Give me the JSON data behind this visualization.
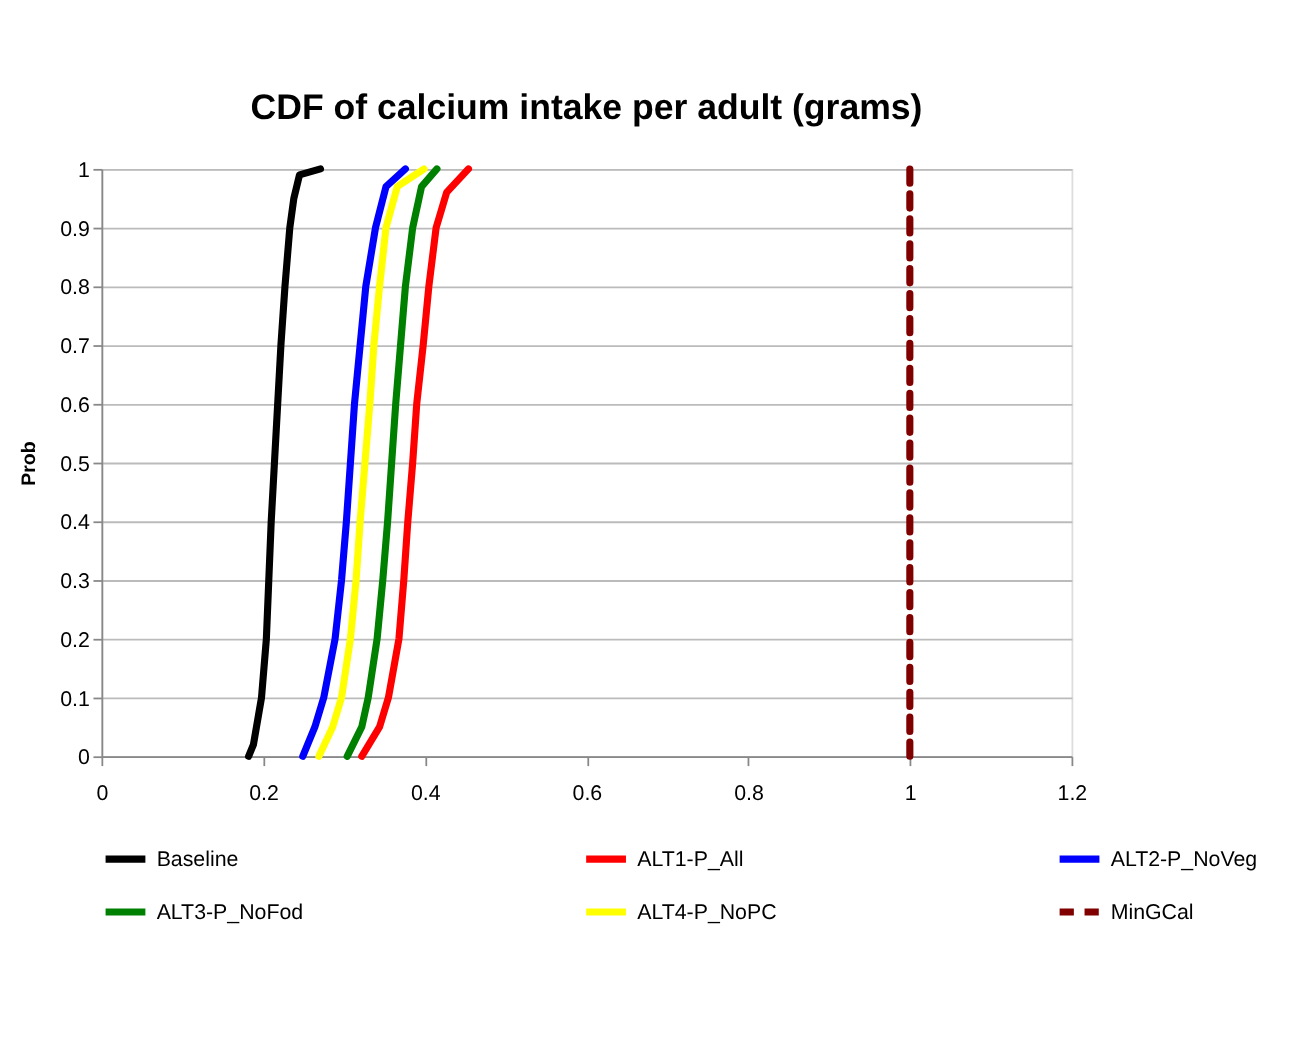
{
  "chart_data": {
    "type": "line",
    "title": "CDF of calcium intake per adult (grams)",
    "ylabel": "Prob",
    "xlim": [
      0,
      1.2
    ],
    "xticks": [
      0,
      0.2,
      0.4,
      0.6,
      0.8,
      1,
      1.2
    ],
    "ylim": [
      0,
      1
    ],
    "yticks": [
      0,
      0.1,
      0.2,
      0.3,
      0.4,
      0.5,
      0.6,
      0.7,
      0.8,
      0.9,
      1
    ],
    "grid": "y",
    "legend": "bottom",
    "marker": "none",
    "line_style": "solid",
    "series": [
      {
        "name": "Baseline",
        "color": "#000000",
        "x": [
          0.182,
          0.188,
          0.198,
          0.204,
          0.207,
          0.21,
          0.214,
          0.218,
          0.222,
          0.227,
          0.233,
          0.238,
          0.245,
          0.271
        ],
        "values": [
          0,
          0.02,
          0.1,
          0.2,
          0.3,
          0.4,
          0.5,
          0.6,
          0.7,
          0.8,
          0.9,
          0.95,
          0.99,
          1
        ]
      },
      {
        "name": "ALT1-P_All",
        "color": "#ff0000",
        "x": [
          0.322,
          0.344,
          0.355,
          0.368,
          0.374,
          0.379,
          0.385,
          0.39,
          0.398,
          0.405,
          0.414,
          0.427,
          0.454
        ],
        "values": [
          0,
          0.05,
          0.1,
          0.2,
          0.3,
          0.4,
          0.5,
          0.6,
          0.7,
          0.8,
          0.9,
          0.96,
          1
        ]
      },
      {
        "name": "ALT2-P_NoVeg",
        "color": "#0000ff",
        "x": [
          0.249,
          0.264,
          0.275,
          0.289,
          0.297,
          0.303,
          0.308,
          0.313,
          0.32,
          0.327,
          0.339,
          0.352,
          0.376
        ],
        "values": [
          0,
          0.05,
          0.1,
          0.2,
          0.3,
          0.4,
          0.5,
          0.6,
          0.7,
          0.8,
          0.9,
          0.97,
          1
        ]
      },
      {
        "name": "ALT3-P_NoFod",
        "color": "#008000",
        "x": [
          0.304,
          0.322,
          0.33,
          0.341,
          0.348,
          0.354,
          0.359,
          0.364,
          0.37,
          0.376,
          0.385,
          0.396,
          0.415
        ],
        "values": [
          0,
          0.05,
          0.1,
          0.2,
          0.3,
          0.4,
          0.5,
          0.6,
          0.7,
          0.8,
          0.9,
          0.97,
          1
        ]
      },
      {
        "name": "ALT4-P_NoPC",
        "color": "#ffff00",
        "x": [
          0.269,
          0.286,
          0.297,
          0.308,
          0.315,
          0.32,
          0.326,
          0.332,
          0.337,
          0.344,
          0.352,
          0.366,
          0.399
        ],
        "values": [
          0,
          0.05,
          0.1,
          0.2,
          0.3,
          0.4,
          0.5,
          0.6,
          0.7,
          0.8,
          0.9,
          0.97,
          1
        ]
      },
      {
        "name": "MinGCal",
        "color": "#800000",
        "line_style": "dashed",
        "x": [
          1,
          1
        ],
        "values": [
          0,
          1
        ]
      }
    ]
  }
}
